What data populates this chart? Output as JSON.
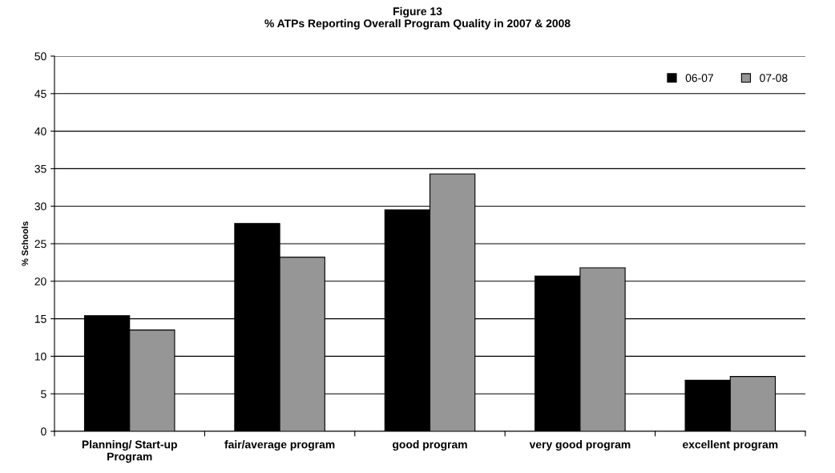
{
  "chart_data": {
    "type": "bar",
    "title": "Figure 13\n% ATPs Reporting Overall Program Quality in 2007 & 2008",
    "ylabel": "% Schools",
    "categories": [
      "Planning/ Start-up\nProgram",
      "fair/average program",
      "good program",
      "very good program",
      "excellent program"
    ],
    "series": [
      {
        "name": "06-07",
        "color": "#000000",
        "values": [
          15.4,
          27.7,
          29.5,
          20.7,
          6.8
        ]
      },
      {
        "name": "07-08",
        "color": "#969696",
        "values": [
          13.5,
          23.2,
          34.3,
          21.8,
          7.3
        ]
      }
    ],
    "ylim": [
      0,
      50
    ],
    "yticks": [
      0,
      5,
      10,
      15,
      20,
      25,
      30,
      35,
      40,
      45,
      50
    ],
    "grid": "y",
    "legend": "top right"
  }
}
